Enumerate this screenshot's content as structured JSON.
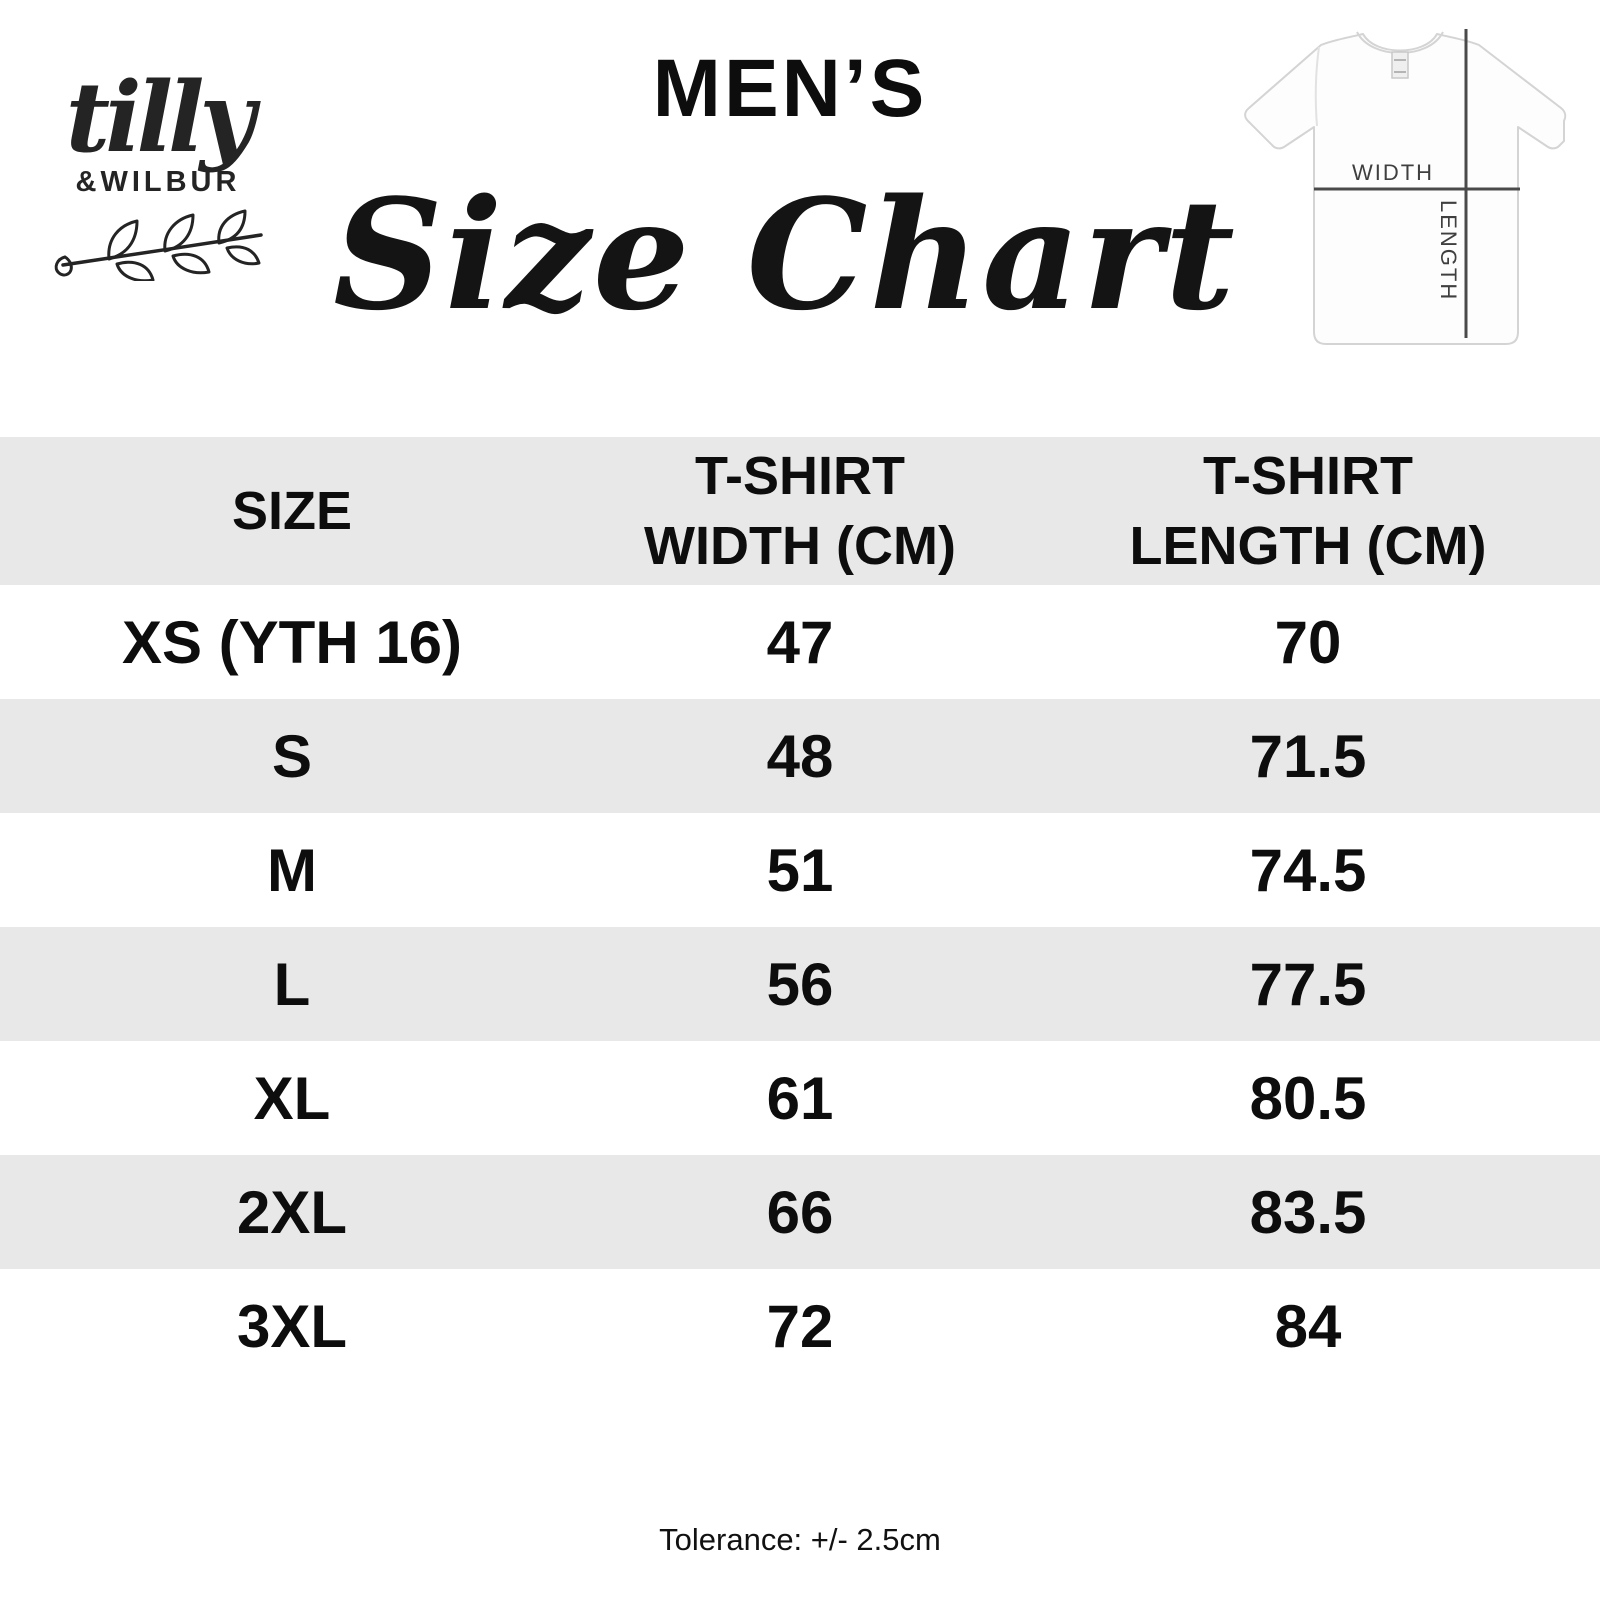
{
  "colors": {
    "text": "#111111",
    "row_alt_bg": "#e8e8e8",
    "diagram_line": "#4a4a4a"
  },
  "logo": {
    "script_text": "tilly",
    "caps_text": "&WILBUR",
    "decoration": "branch-with-leaves-icon"
  },
  "title": {
    "category": "MEN’S",
    "heading": "Size Chart"
  },
  "diagram": {
    "width_label": "WIDTH",
    "length_label": "LENGTH"
  },
  "table": {
    "columns": [
      {
        "line1": "SIZE",
        "line2": ""
      },
      {
        "line1": "T-SHIRT",
        "line2": "WIDTH (CM)"
      },
      {
        "line1": "T-SHIRT",
        "line2": "LENGTH (CM)"
      }
    ],
    "rows": [
      {
        "size": "XS (YTH 16)",
        "width_cm": "47",
        "length_cm": "70"
      },
      {
        "size": "S",
        "width_cm": "48",
        "length_cm": "71.5"
      },
      {
        "size": "M",
        "width_cm": "51",
        "length_cm": "74.5"
      },
      {
        "size": "L",
        "width_cm": "56",
        "length_cm": "77.5"
      },
      {
        "size": "XL",
        "width_cm": "61",
        "length_cm": "80.5"
      },
      {
        "size": "2XL",
        "width_cm": "66",
        "length_cm": "83.5"
      },
      {
        "size": "3XL",
        "width_cm": "72",
        "length_cm": "84"
      }
    ]
  },
  "footer": {
    "tolerance_note": "Tolerance: +/- 2.5cm"
  },
  "chart_data": {
    "type": "table",
    "title": "MEN'S Size Chart",
    "columns": [
      "SIZE",
      "T-SHIRT WIDTH (CM)",
      "T-SHIRT LENGTH (CM)"
    ],
    "rows": [
      [
        "XS (YTH 16)",
        47,
        70
      ],
      [
        "S",
        48,
        71.5
      ],
      [
        "M",
        51,
        74.5
      ],
      [
        "L",
        56,
        77.5
      ],
      [
        "XL",
        61,
        80.5
      ],
      [
        "2XL",
        66,
        83.5
      ],
      [
        "3XL",
        72,
        84
      ]
    ],
    "note": "Tolerance: +/- 2.5cm"
  }
}
